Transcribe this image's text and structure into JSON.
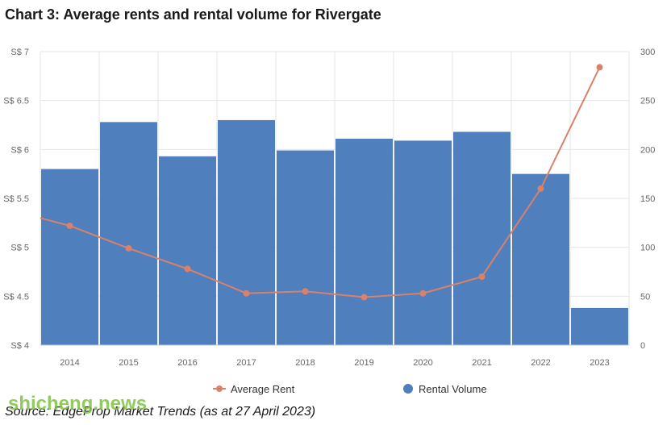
{
  "title": "Chart 3: Average rents and rental volume for Rivergate",
  "source": "Source: EdgeProp Market Trends (as at 27 April 2023)",
  "watermark": "shicheng.news",
  "colors": {
    "bar": "#4f7fbd",
    "line": "#d9816a",
    "grid": "#e6e6e6"
  },
  "chart_data": {
    "type": "bar+line",
    "categories": [
      "2014",
      "2015",
      "2016",
      "2017",
      "2018",
      "2019",
      "2020",
      "2021",
      "2022",
      "2023"
    ],
    "series": [
      {
        "name": "Rental Volume",
        "type": "bar",
        "axis": "right",
        "values": [
          180,
          228,
          193,
          230,
          199,
          211,
          209,
          218,
          175,
          38
        ]
      },
      {
        "name": "Average Rent",
        "type": "line",
        "axis": "left",
        "values": [
          5.22,
          4.99,
          4.78,
          4.53,
          4.55,
          4.49,
          4.53,
          4.7,
          5.6,
          6.84
        ]
      }
    ],
    "y_left": {
      "ylim": [
        4,
        7
      ],
      "ticks": [
        4,
        4.5,
        5,
        5.5,
        6,
        6.5,
        7
      ],
      "tick_labels": [
        "S$ 4",
        "S$ 4.5",
        "S$ 5",
        "S$ 5.5",
        "S$ 6",
        "S$ 6.5",
        "S$ 7"
      ]
    },
    "y_right": {
      "ylim": [
        0,
        300
      ],
      "ticks": [
        0,
        50,
        100,
        150,
        200,
        250,
        300
      ],
      "tick_labels": [
        "0",
        "50",
        "100",
        "150",
        "200",
        "250",
        "300"
      ]
    },
    "y_left_extra": {
      "value": 5.3
    },
    "grid": true,
    "legend": {
      "placement": "bottom",
      "entries": [
        "Average Rent",
        "Rental Volume"
      ]
    }
  }
}
